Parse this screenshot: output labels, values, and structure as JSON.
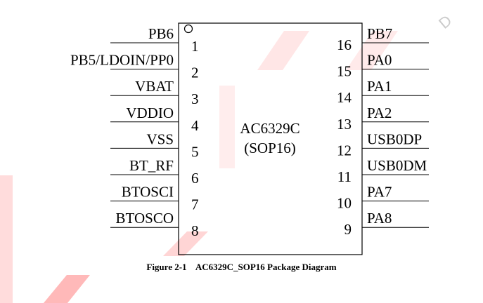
{
  "chip": {
    "name": "AC6329C",
    "package": "(SOP16)"
  },
  "left_pins": [
    {
      "num": "1",
      "name": "PB6"
    },
    {
      "num": "2",
      "name": "PB5/LDOIN/PP0"
    },
    {
      "num": "3",
      "name": "VBAT"
    },
    {
      "num": "4",
      "name": "VDDIO"
    },
    {
      "num": "5",
      "name": "VSS"
    },
    {
      "num": "6",
      "name": "BT_RF"
    },
    {
      "num": "7",
      "name": "BTOSCI"
    },
    {
      "num": "8",
      "name": "BTOSCO"
    }
  ],
  "right_pins": [
    {
      "num": "16",
      "name": "PB7"
    },
    {
      "num": "15",
      "name": "PA0"
    },
    {
      "num": "14",
      "name": "PA1"
    },
    {
      "num": "13",
      "name": "PA2"
    },
    {
      "num": "12",
      "name": "USB0DP"
    },
    {
      "num": "11",
      "name": "USB0DM"
    },
    {
      "num": "10",
      "name": "PA7"
    },
    {
      "num": "9",
      "name": "PA8"
    }
  ],
  "caption": {
    "label": "Figure 2-1",
    "title": "AC6329C_SOP16 Package Diagram"
  },
  "watermark": {
    "text": "CONFIDENTIAL",
    "color": "#ff5a5a"
  }
}
